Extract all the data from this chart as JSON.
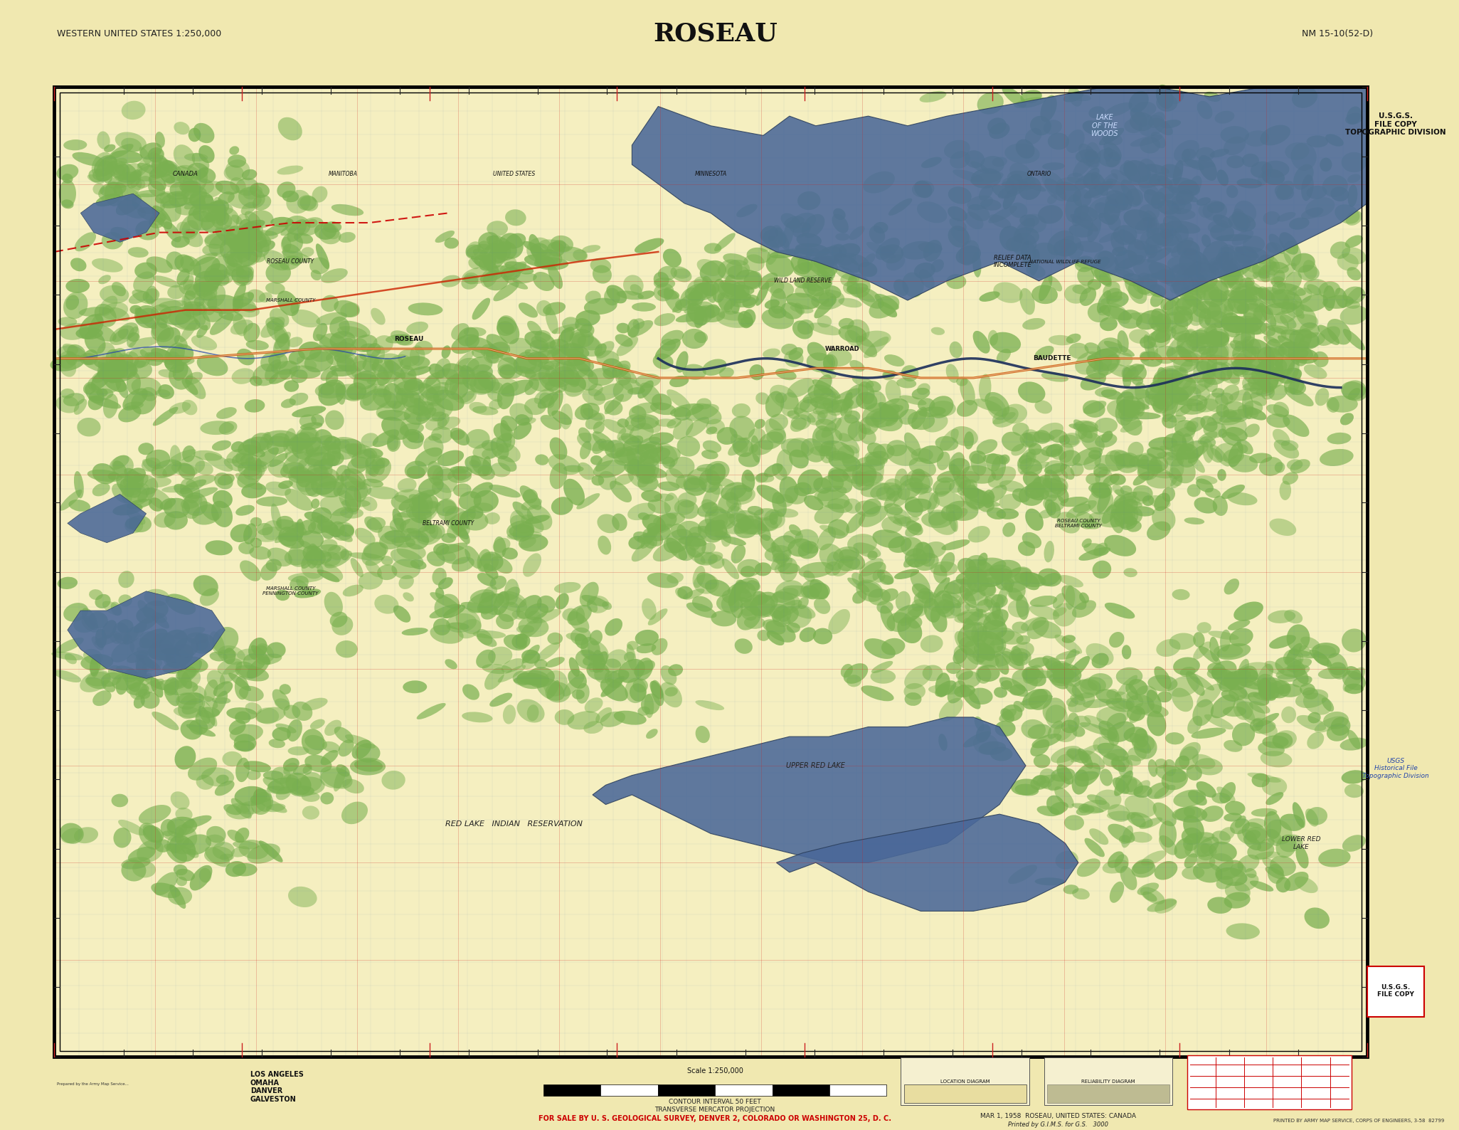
{
  "bg_color": "#f0e8b0",
  "map_bg_color": "#f5efc0",
  "title": "ROSEAU",
  "title_fontsize": 26,
  "subtitle_left": "WESTERN UNITED STATES 1:250,000",
  "subtitle_right": "NM 15-10(52-D)",
  "subtitle_fontsize": 9,
  "bottom_red_text": "FOR SALE BY U. S. GEOLOGICAL SURVEY, DENVER 2, COLORADO OR WASHINGTON 25, D. C.",
  "bottom_text2": "MAR 1, 1958  ROSEAU, UNITED STATES: CANADA",
  "bottom_text3": "CONTOUR INTERVAL 50 FEET",
  "bottom_text4": "TRANSVERSE MERCATOR PROJECTION",
  "printed_note": "Printed by G.I.M.S. for G.S.   3000",
  "usgs_file_copy": "U.S.G.S.\nFILE COPY\nTOPOGRAPHIC DIVISION",
  "usgs_historical": "USGS\nHistorical File\nTopographic Division",
  "usgs_file_copy2": "U.S.G.S.\nFILE COPY",
  "water_color": "#4a6899",
  "water_alpha": 0.88,
  "forest_color": "#7ab050",
  "forest_alpha": 0.7,
  "map_border": [
    0.038,
    0.065,
    0.918,
    0.858
  ],
  "red_grid_color": "#cc2222",
  "blue_grid_color": "#4477aa",
  "road_color": "#cc5500",
  "river_color": "#334d88"
}
